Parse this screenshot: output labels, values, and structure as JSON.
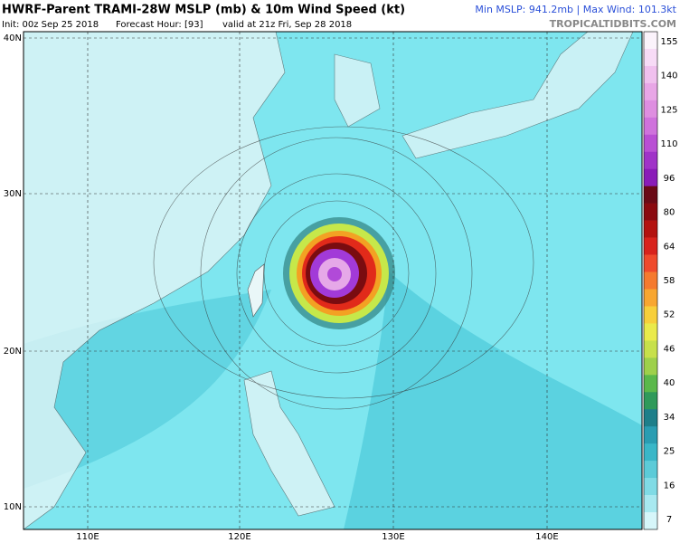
{
  "header": {
    "title": "HWRF-Parent TRAMI-28W MSLP (mb) & 10m Wind Speed (kt)",
    "init": "Init: 00z Sep 25 2018",
    "forecast": "Forecast Hour: [93]",
    "valid": "valid at 21z Fri, Sep 28 2018",
    "stats": "Min MSLP: 941.2mb | Max Wind: 101.3kt",
    "site": "TROPICALTIDBITS.COM"
  },
  "map": {
    "lat_labels": [
      "40N",
      "30N",
      "20N",
      "10N"
    ],
    "lon_labels": [
      "110E",
      "120E",
      "130E",
      "140E"
    ]
  },
  "colorbar": {
    "labels": [
      "155",
      "140",
      "125",
      "110",
      "96",
      "80",
      "64",
      "58",
      "52",
      "46",
      "40",
      "34",
      "25",
      "16",
      "7"
    ]
  }
}
